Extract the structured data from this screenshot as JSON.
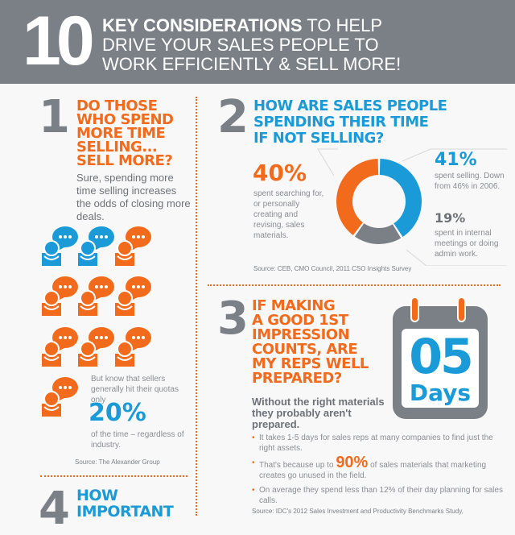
{
  "header": {
    "number": "10",
    "title_bold": "KEY CONSIDERATIONS",
    "title_rest1": " TO HELP",
    "title_line2": "DRIVE YOUR SALES PEOPLE TO",
    "title_line3": "WORK EFFICIENTLY & SELL MORE!"
  },
  "section1": {
    "number": "1",
    "title": [
      "DO THOSE",
      "WHO SPEND",
      "MORE TIME",
      "SELLING...",
      "SELL MORE?"
    ],
    "body": "Sure, spending more time selling increases the odds of closing more deals.",
    "icons": {
      "name": "person-speech-bubble-icon",
      "colors": [
        "#1a9ad6",
        "#1a9ad6",
        "#f26b1d",
        "#f26b1d",
        "#f26b1d",
        "#f26b1d",
        "#f26b1d",
        "#f26b1d",
        "#f26b1d",
        "#f26b1d"
      ]
    },
    "quota_intro": "But know that sellers generally hit their quotas only",
    "quota_value": "20%",
    "quota_after": "of the time – regardless of industry.",
    "source": "Source: The Alexander Group"
  },
  "section2": {
    "number": "2",
    "title": [
      "HOW ARE SALES PEOPLE",
      "SPENDING THEIR TIME",
      "IF NOT SELLING?"
    ],
    "source": "Source: CEB, CMO Council, 2011 CSO Insights Survey"
  },
  "chart_data": {
    "type": "pie",
    "donut": true,
    "slices": [
      {
        "value": 41,
        "label": "41%",
        "text": "spent selling. Down from 46% in 2006.",
        "color": "#1a9ad6"
      },
      {
        "value": 19,
        "label": "19%",
        "text": "spent in internal meetings or doing admin work.",
        "color": "#7b8087"
      },
      {
        "value": 40,
        "label": "40%",
        "text": "spent searching for, or personally creating and revising, sales materials.",
        "color": "#f26b1d"
      }
    ]
  },
  "section3": {
    "number": "3",
    "title": [
      "IF MAKING",
      "A GOOD 1ST",
      "IMPRESSION",
      "COUNTS, ARE",
      "MY REPS WELL",
      "PREPARED?"
    ],
    "calendar": {
      "value": "05",
      "unit": "Days"
    },
    "lead": "Without the right materials they probably aren't prepared.",
    "bullets": [
      {
        "text": "It takes 1-5 days for sales reps at many companies to find just the right assets."
      },
      {
        "pre": "That's because up to ",
        "highlight": "90%",
        "post": " of sales materials that marketing creates go unused in the field."
      },
      {
        "text": "On average they spend less than 12% of their day planning for sales calls."
      }
    ],
    "source": "Source: IDC's 2012 Sales Investment and Productivity Benchmarks Study,"
  },
  "section4": {
    "number": "4",
    "title": [
      "HOW",
      "IMPORTANT"
    ]
  },
  "colors": {
    "orange": "#f26b1d",
    "blue": "#1a9ad6",
    "gray": "#7b8087"
  }
}
